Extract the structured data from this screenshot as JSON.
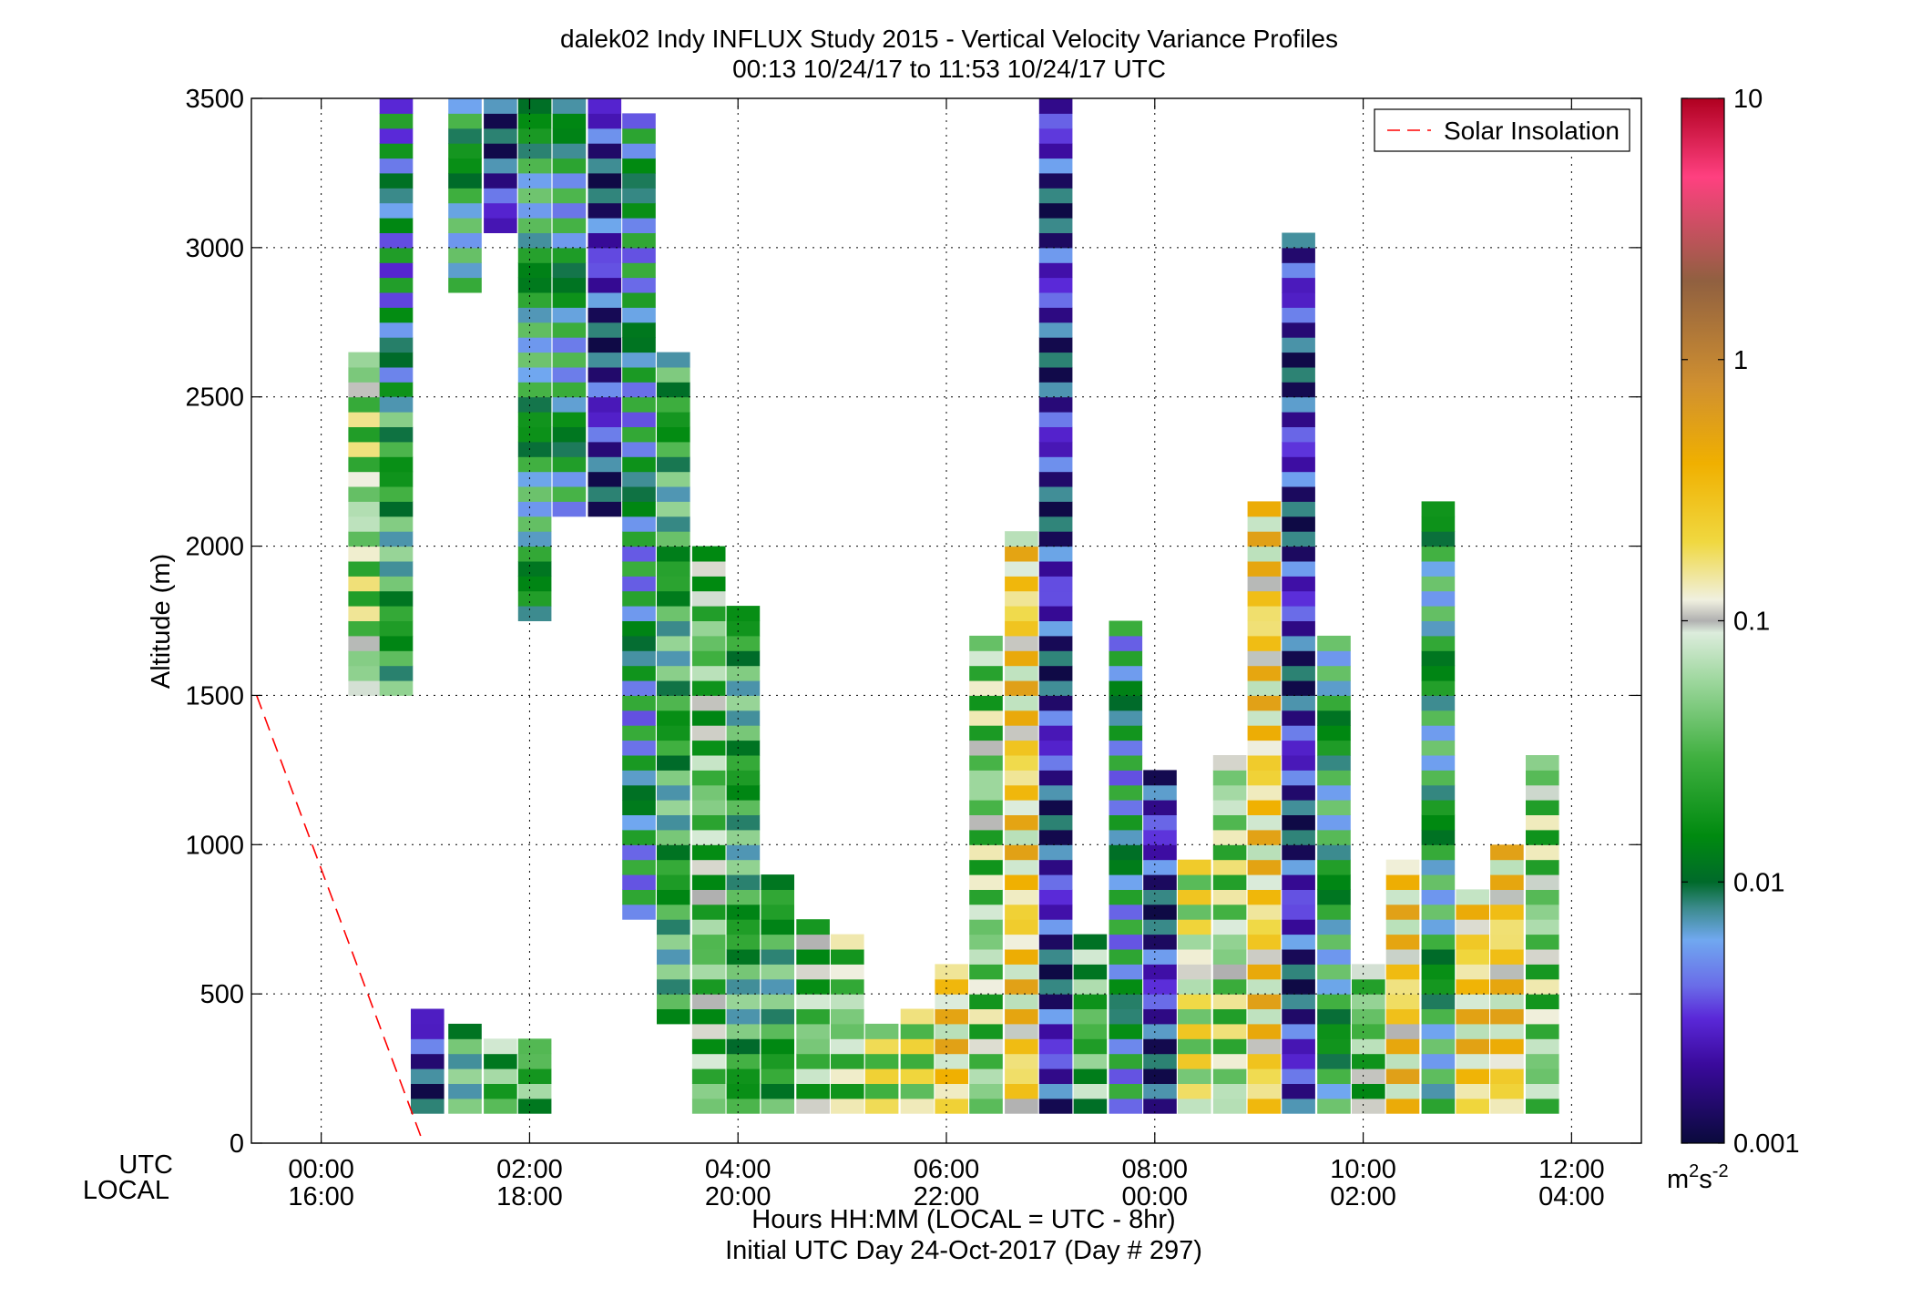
{
  "chart_data": {
    "type": "heatmap",
    "title": "dalek02 Indy INFLUX Study 2015 - Vertical Velocity Variance Profiles",
    "subtitle": "00:13 10/24/17 to 11:53 10/24/17  UTC",
    "ylabel": "Altitude (m)",
    "xlabel": "Hours HH:MM  (LOCAL = UTC - 8hr)",
    "xlabel2": "Initial UTC Day 24-Oct-2017 (Day # 297)",
    "x_row_labels": [
      "UTC",
      "LOCAL"
    ],
    "xlim": [
      -0.67,
      12.67
    ],
    "ylim": [
      0,
      3500
    ],
    "yticks": [
      0,
      500,
      1000,
      1500,
      2000,
      2500,
      3000,
      3500
    ],
    "ytick_labels": [
      "0",
      "500",
      "1000",
      "1500",
      "2000",
      "2500",
      "3000",
      "3500"
    ],
    "xticks": [
      0,
      2,
      4,
      6,
      8,
      10,
      12
    ],
    "xtick_labels_utc": [
      "00:00",
      "02:00",
      "04:00",
      "06:00",
      "08:00",
      "10:00",
      "12:00"
    ],
    "xtick_labels_local": [
      "16:00",
      "18:00",
      "20:00",
      "22:00",
      "00:00",
      "02:00",
      "04:00"
    ],
    "grid": true,
    "legend": {
      "location": "top-right",
      "entries": [
        "Solar Insolation"
      ]
    },
    "colorbar": {
      "scale": "log",
      "range": [
        0.001,
        10
      ],
      "tick_labels": [
        "10",
        "1",
        "0.1",
        "0.01",
        "0.001"
      ],
      "tick_values": [
        10,
        1,
        0.1,
        0.01,
        0.001
      ],
      "units": "m²s⁻²",
      "units_base": "m",
      "units_exp1": "2",
      "units_mid": "s",
      "units_exp2": "-2",
      "colormap_stops": [
        {
          "value": 0.001,
          "color": "#0a0a3c"
        },
        {
          "value": 0.002,
          "color": "#3a0a9c"
        },
        {
          "value": 0.003,
          "color": "#5a28d8"
        },
        {
          "value": 0.004,
          "color": "#6a6ce8"
        },
        {
          "value": 0.006,
          "color": "#70a8f0"
        },
        {
          "value": 0.008,
          "color": "#3a8a8a"
        },
        {
          "value": 0.01,
          "color": "#006a2a"
        },
        {
          "value": 0.015,
          "color": "#008a10"
        },
        {
          "value": 0.03,
          "color": "#40b040"
        },
        {
          "value": 0.06,
          "color": "#a0d8a0"
        },
        {
          "value": 0.09,
          "color": "#dcecdc"
        },
        {
          "value": 0.1,
          "color": "#b0b0b0"
        },
        {
          "value": 0.12,
          "color": "#f0f0e0"
        },
        {
          "value": 0.2,
          "color": "#f0d840"
        },
        {
          "value": 0.4,
          "color": "#f0b000"
        },
        {
          "value": 0.8,
          "color": "#d09030"
        },
        {
          "value": 2,
          "color": "#906040"
        },
        {
          "value": 5,
          "color": "#ff4080"
        },
        {
          "value": 10,
          "color": "#b00020"
        }
      ]
    },
    "solar_insolation": {
      "x": [
        -0.62,
        0.98
      ],
      "y": [
        1500,
        0
      ],
      "color": "#ff0000"
    },
    "profiles": [
      {
        "utc_hours": 0.42,
        "altitude_bottom": 1500,
        "altitude_top": 2650,
        "variance": 0.06
      },
      {
        "utc_hours": 0.72,
        "altitude_bottom": 2500,
        "altitude_top": 3500,
        "variance": 0.008
      },
      {
        "utc_hours": 0.72,
        "altitude_bottom": 1500,
        "altitude_top": 2500,
        "variance": 0.02
      },
      {
        "utc_hours": 1.02,
        "altitude_bottom": 100,
        "altitude_top": 450,
        "variance": 0.003
      },
      {
        "utc_hours": 1.38,
        "altitude_bottom": 100,
        "altitude_top": 400,
        "variance": 0.02
      },
      {
        "utc_hours": 1.38,
        "altitude_bottom": 2850,
        "altitude_top": 3500,
        "variance": 0.015
      },
      {
        "utc_hours": 1.72,
        "altitude_bottom": 100,
        "altitude_top": 350,
        "variance": 0.03
      },
      {
        "utc_hours": 1.72,
        "altitude_bottom": 3050,
        "altitude_top": 3500,
        "variance": 0.003
      },
      {
        "utc_hours": 2.05,
        "altitude_bottom": 1750,
        "altitude_top": 3500,
        "variance": 0.015
      },
      {
        "utc_hours": 2.05,
        "altitude_bottom": 100,
        "altitude_top": 350,
        "variance": 0.03
      },
      {
        "utc_hours": 2.38,
        "altitude_bottom": 2100,
        "altitude_top": 3500,
        "variance": 0.012
      },
      {
        "utc_hours": 2.72,
        "altitude_bottom": 2100,
        "altitude_top": 3500,
        "variance": 0.003
      },
      {
        "utc_hours": 3.05,
        "altitude_bottom": 750,
        "altitude_top": 3450,
        "variance": 0.01
      },
      {
        "utc_hours": 3.38,
        "altitude_bottom": 400,
        "altitude_top": 2650,
        "variance": 0.02
      },
      {
        "utc_hours": 3.72,
        "altitude_bottom": 100,
        "altitude_top": 2000,
        "variance": 0.04
      },
      {
        "utc_hours": 4.05,
        "altitude_bottom": 100,
        "altitude_top": 1800,
        "variance": 0.02
      },
      {
        "utc_hours": 4.38,
        "altitude_bottom": 100,
        "altitude_top": 900,
        "variance": 0.02
      },
      {
        "utc_hours": 4.72,
        "altitude_bottom": 100,
        "altitude_top": 750,
        "variance": 0.04
      },
      {
        "utc_hours": 5.05,
        "altitude_bottom": 100,
        "altitude_top": 700,
        "variance": 0.05
      },
      {
        "utc_hours": 5.38,
        "altitude_bottom": 100,
        "altitude_top": 400,
        "variance": 0.08
      },
      {
        "utc_hours": 5.72,
        "altitude_bottom": 100,
        "altitude_top": 450,
        "variance": 0.08
      },
      {
        "utc_hours": 6.05,
        "altitude_bottom": 100,
        "altitude_top": 600,
        "variance": 0.2
      },
      {
        "utc_hours": 6.38,
        "altitude_bottom": 100,
        "altitude_top": 1700,
        "variance": 0.05
      },
      {
        "utc_hours": 6.72,
        "altitude_bottom": 100,
        "altitude_top": 2050,
        "variance": 0.2
      },
      {
        "utc_hours": 7.05,
        "altitude_bottom": 100,
        "altitude_top": 3500,
        "variance": 0.003
      },
      {
        "utc_hours": 7.38,
        "altitude_bottom": 100,
        "altitude_top": 700,
        "variance": 0.03
      },
      {
        "utc_hours": 7.72,
        "altitude_bottom": 100,
        "altitude_top": 1750,
        "variance": 0.01
      },
      {
        "utc_hours": 8.05,
        "altitude_bottom": 100,
        "altitude_top": 1250,
        "variance": 0.003
      },
      {
        "utc_hours": 8.38,
        "altitude_bottom": 100,
        "altitude_top": 950,
        "variance": 0.1
      },
      {
        "utc_hours": 8.72,
        "altitude_bottom": 100,
        "altitude_top": 1300,
        "variance": 0.06
      },
      {
        "utc_hours": 9.05,
        "altitude_bottom": 100,
        "altitude_top": 2150,
        "variance": 0.2
      },
      {
        "utc_hours": 9.38,
        "altitude_bottom": 100,
        "altitude_top": 3050,
        "variance": 0.003
      },
      {
        "utc_hours": 9.72,
        "altitude_bottom": 100,
        "altitude_top": 1700,
        "variance": 0.015
      },
      {
        "utc_hours": 10.05,
        "altitude_bottom": 100,
        "altitude_top": 600,
        "variance": 0.04
      },
      {
        "utc_hours": 10.38,
        "altitude_bottom": 100,
        "altitude_top": 950,
        "variance": 0.2
      },
      {
        "utc_hours": 10.72,
        "altitude_bottom": 100,
        "altitude_top": 2150,
        "variance": 0.015
      },
      {
        "utc_hours": 11.05,
        "altitude_bottom": 100,
        "altitude_top": 850,
        "variance": 0.2
      },
      {
        "utc_hours": 11.38,
        "altitude_bottom": 100,
        "altitude_top": 1000,
        "variance": 0.2
      },
      {
        "utc_hours": 11.72,
        "altitude_bottom": 100,
        "altitude_top": 1300,
        "variance": 0.05
      }
    ]
  }
}
